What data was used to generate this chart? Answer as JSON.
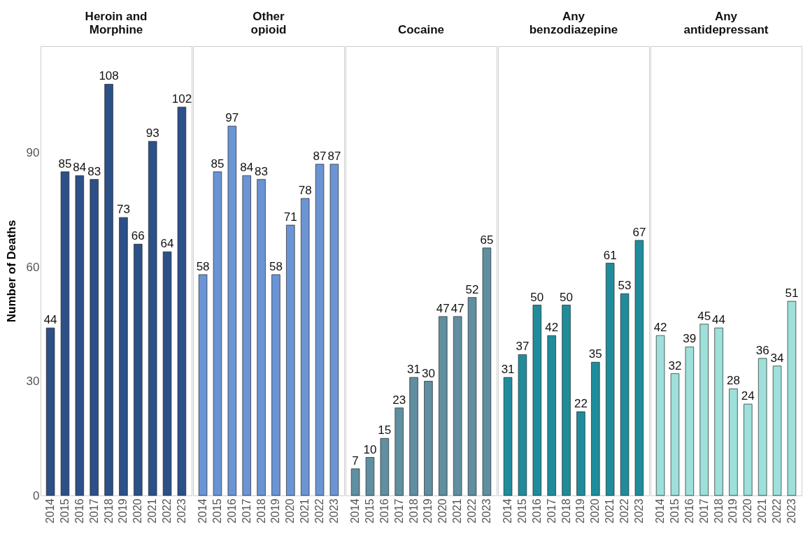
{
  "chart_data": [
    {
      "type": "bar",
      "title": "Heroin and Morphine",
      "ylabel": "Number of Deaths",
      "categories": [
        "2014",
        "2015",
        "2016",
        "2017",
        "2018",
        "2019",
        "2020",
        "2021",
        "2022",
        "2023"
      ],
      "values": [
        44,
        85,
        84,
        83,
        108,
        73,
        66,
        93,
        64,
        102
      ],
      "color": "#2c5088",
      "ylim": [
        0,
        118
      ],
      "yticks": [
        0,
        30,
        60,
        90
      ],
      "data_labels": true
    },
    {
      "type": "bar",
      "title": "Other opioid",
      "categories": [
        "2014",
        "2015",
        "2016",
        "2017",
        "2018",
        "2019",
        "2020",
        "2021",
        "2022",
        "2023"
      ],
      "values": [
        58,
        85,
        97,
        84,
        83,
        58,
        71,
        78,
        87,
        87
      ],
      "color": "#6a94d4",
      "ylim": [
        0,
        118
      ],
      "yticks": [
        0,
        30,
        60,
        90
      ],
      "data_labels": true,
      "tick_labels": "x"
    },
    {
      "type": "bar",
      "title": "Cocaine",
      "categories": [
        "2014",
        "2015",
        "2016",
        "2017",
        "2018",
        "2019",
        "2020",
        "2021",
        "2022",
        "2023"
      ],
      "values": [
        7,
        10,
        15,
        23,
        31,
        30,
        47,
        47,
        52,
        65
      ],
      "color": "#5f8fa1",
      "ylim": [
        0,
        118
      ],
      "yticks": [
        0,
        30,
        60,
        90
      ],
      "data_labels": true,
      "tick_labels": "x"
    },
    {
      "type": "bar",
      "title": "Any benzodiazepine",
      "categories": [
        "2014",
        "2015",
        "2016",
        "2017",
        "2018",
        "2019",
        "2020",
        "2021",
        "2022",
        "2023"
      ],
      "values": [
        31,
        37,
        50,
        42,
        50,
        22,
        35,
        61,
        53,
        67
      ],
      "color": "#1f8c9c",
      "ylim": [
        0,
        118
      ],
      "yticks": [
        0,
        30,
        60,
        90
      ],
      "data_labels": true,
      "tick_labels": "x"
    },
    {
      "type": "bar",
      "title": "Any antidepressant",
      "categories": [
        "2014",
        "2015",
        "2016",
        "2017",
        "2018",
        "2019",
        "2020",
        "2021",
        "2022",
        "2023"
      ],
      "values": [
        42,
        32,
        39,
        45,
        44,
        28,
        24,
        36,
        34,
        51
      ],
      "color": "#9ee0da",
      "ylim": [
        0,
        118
      ],
      "yticks": [
        0,
        30,
        60,
        90
      ],
      "data_labels": true,
      "tick_labels": "x"
    }
  ]
}
